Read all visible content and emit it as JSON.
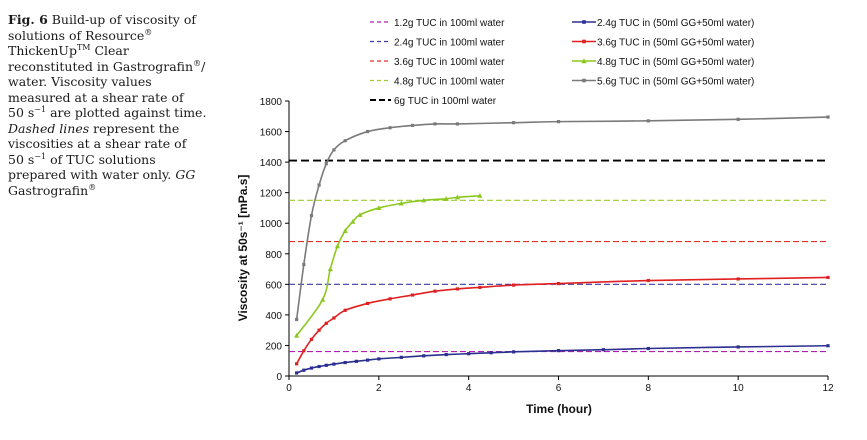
{
  "caption": {
    "fig_label": "Fig. 6",
    "line1": "Build-up of viscosity of",
    "line2": "solutions of Resource",
    "reg1": "®",
    "line3a": "ThickenUp",
    "tm": "TM",
    "line3b": "Clear",
    "line4": "reconstituted in Gastrografin",
    "reg2": "®",
    "line4b": "/",
    "line5": "water. Viscosity values",
    "line6": "measured at a shear rate of",
    "line7a": "50 s",
    "line7sup": "−1",
    "line7b": "are plotted against time.",
    "line8a": "Dashed lines",
    "line8b": "represent the",
    "line9": "viscosities at a shear rate of",
    "line10a": "50 s",
    "line10sup": "−1",
    "line10b": "of TUC solutions",
    "line11a": "prepared with water only.",
    "line11b": "GG",
    "line12": "Gastrografin",
    "reg3": "®"
  },
  "chart_data": {
    "type": "line",
    "xlabel": "Time (hour)",
    "ylabel": "Viscosity at 50s⁻¹ [mPa.s]",
    "xlim": [
      0,
      12
    ],
    "ylim": [
      0,
      1800
    ],
    "xticks": [
      0,
      2,
      4,
      6,
      8,
      10,
      12
    ],
    "yticks": [
      0,
      200,
      400,
      600,
      800,
      1000,
      1200,
      1400,
      1600,
      1800
    ],
    "grid": false,
    "legend_position": "top",
    "series": [
      {
        "name": "2.4g TUC in (50ml GG+50ml water)",
        "color": "#2b2f8f",
        "marker": "square",
        "x": [
          0.17,
          0.33,
          0.5,
          0.67,
          0.83,
          1.0,
          1.25,
          1.5,
          1.75,
          2.0,
          2.5,
          3.0,
          3.5,
          4.0,
          4.5,
          5.0,
          6.0,
          7.0,
          8.0,
          10.0,
          12.0
        ],
        "y": [
          20,
          38,
          52,
          62,
          70,
          78,
          88,
          96,
          104,
          112,
          122,
          132,
          140,
          146,
          152,
          158,
          166,
          172,
          180,
          190,
          198
        ]
      },
      {
        "name": "3.6g TUC in (50ml GG+50ml water)",
        "color": "#e02020",
        "marker": "square",
        "x": [
          0.17,
          0.33,
          0.5,
          0.67,
          0.83,
          1.0,
          1.25,
          1.75,
          2.25,
          2.75,
          3.25,
          3.75,
          4.25,
          5.0,
          6.0,
          8.0,
          10.0,
          12.0
        ],
        "y": [
          80,
          165,
          240,
          300,
          345,
          380,
          430,
          475,
          505,
          530,
          555,
          570,
          580,
          595,
          605,
          625,
          635,
          645
        ]
      },
      {
        "name": "4.8g TUC in (50ml GG+50ml water)",
        "color": "#8cc820",
        "marker": "triangle",
        "x": [
          0.17,
          0.75,
          0.92,
          1.08,
          1.25,
          1.42,
          1.58,
          2.0,
          2.5,
          3.0,
          3.5,
          3.75,
          4.25
        ],
        "y": [
          265,
          500,
          700,
          850,
          950,
          1010,
          1055,
          1100,
          1130,
          1150,
          1160,
          1170,
          1180
        ]
      },
      {
        "name": "5.6g TUC in (50ml GG+50ml water)",
        "color": "#7a7a7a",
        "marker": "square",
        "x": [
          0.17,
          0.33,
          0.5,
          0.67,
          0.83,
          1.0,
          1.25,
          1.75,
          2.25,
          2.75,
          3.25,
          3.75,
          5.0,
          6.0,
          8.0,
          10.0,
          12.0
        ],
        "y": [
          370,
          730,
          1050,
          1250,
          1390,
          1480,
          1540,
          1600,
          1625,
          1640,
          1650,
          1650,
          1658,
          1665,
          1670,
          1680,
          1695
        ]
      }
    ],
    "reference_lines": [
      {
        "name": "1.2g TUC in 100ml water",
        "value": 160,
        "color": "#b020b0",
        "dash": "6,3"
      },
      {
        "name": "2.4g TUC in 100ml water",
        "value": 600,
        "color": "#3a3aa8",
        "dash": "6,3"
      },
      {
        "name": "3.6g TUC in 100ml water",
        "value": 880,
        "color": "#e03030",
        "dash": "6,3"
      },
      {
        "name": "4.8g TUC in 100ml water",
        "value": 1150,
        "color": "#9ccc30",
        "dash": "6,3"
      },
      {
        "name": "6g TUC in 100ml water",
        "value": 1410,
        "color": "#000000",
        "dash": "8,4"
      }
    ]
  }
}
